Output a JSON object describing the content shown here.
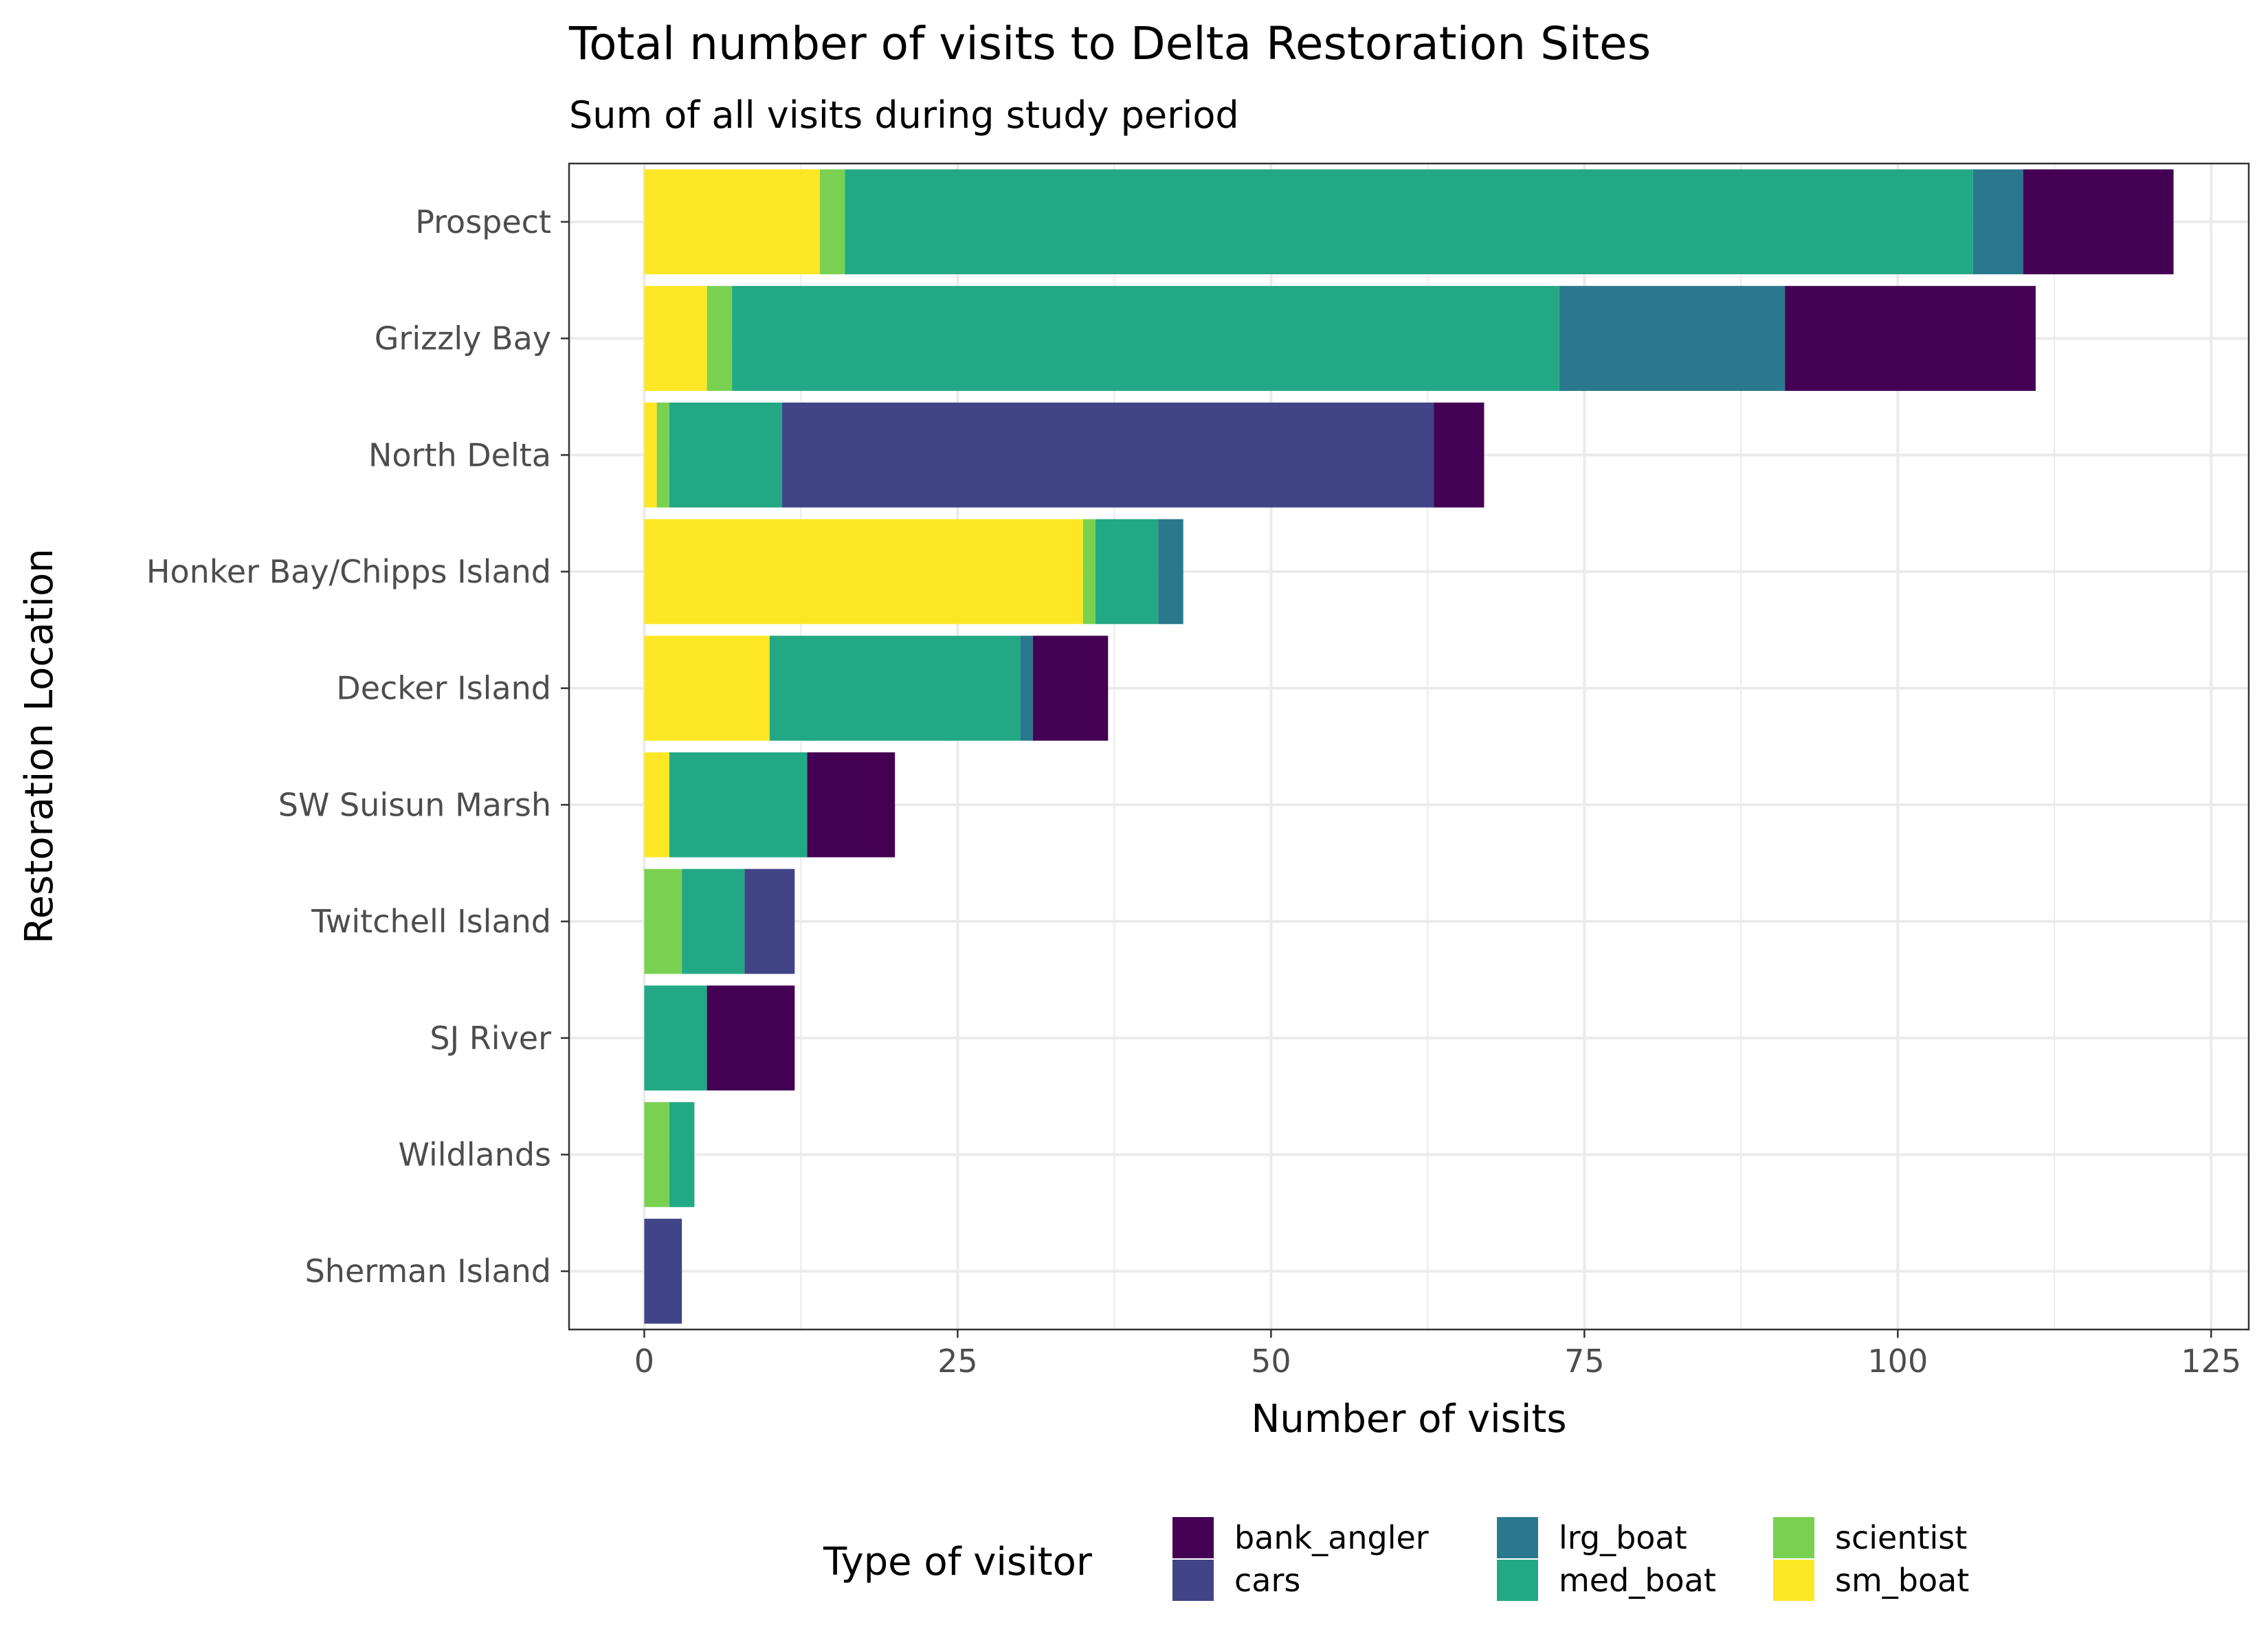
{
  "chart_data": {
    "type": "bar",
    "orientation": "horizontal",
    "stacked": true,
    "title": "Total number of visits to Delta Restoration Sites",
    "subtitle": "Sum of all visits during study period",
    "xlabel": "Number of visits",
    "ylabel": "Restoration Location",
    "xlim": [
      -6,
      128
    ],
    "xticks": [
      "0",
      "25",
      "50",
      "75",
      "100",
      "125"
    ],
    "xtick_values": [
      0,
      25,
      50,
      75,
      100,
      125
    ],
    "grid": true,
    "legend": {
      "title": "Type of visitor",
      "position": "bottom",
      "items": [
        {
          "label": "bank_angler",
          "color": "#440154"
        },
        {
          "label": "cars",
          "color": "#414487"
        },
        {
          "label": "lrg_boat",
          "color": "#2a788e"
        },
        {
          "label": "med_boat",
          "color": "#22a884"
        },
        {
          "label": "scientist",
          "color": "#7ad151"
        },
        {
          "label": "sm_boat",
          "color": "#fde725"
        }
      ]
    },
    "stack_order": [
      "sm_boat",
      "scientist",
      "med_boat",
      "lrg_boat",
      "cars",
      "bank_angler"
    ],
    "categories": [
      "Prospect",
      "Grizzly Bay",
      "North Delta",
      "Honker Bay/Chipps Island",
      "Decker Island",
      "SW Suisun Marsh",
      "Twitchell Island",
      "SJ River",
      "Wildlands",
      "Sherman Island"
    ],
    "series": [
      {
        "name": "sm_boat",
        "values": [
          14,
          5,
          1,
          35,
          10,
          2,
          0,
          0,
          0,
          0
        ]
      },
      {
        "name": "scientist",
        "values": [
          2,
          2,
          1,
          1,
          0,
          0,
          3,
          0,
          2,
          0
        ]
      },
      {
        "name": "med_boat",
        "values": [
          90,
          66,
          9,
          5,
          20,
          11,
          5,
          5,
          2,
          0
        ]
      },
      {
        "name": "lrg_boat",
        "values": [
          4,
          18,
          0,
          2,
          1,
          0,
          0,
          0,
          0,
          0
        ]
      },
      {
        "name": "cars",
        "values": [
          0,
          0,
          52,
          0,
          0,
          0,
          4,
          0,
          0,
          3
        ]
      },
      {
        "name": "bank_angler",
        "values": [
          12,
          20,
          4,
          0,
          6,
          7,
          0,
          7,
          0,
          0
        ]
      }
    ]
  }
}
